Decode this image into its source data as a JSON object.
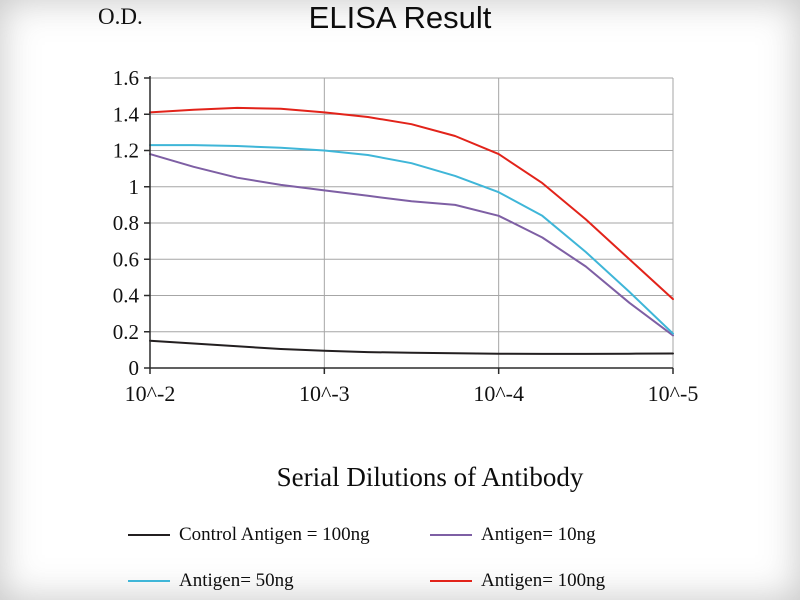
{
  "title": "ELISA Result",
  "y_axis_label": "O.D.",
  "x_axis_label": "Serial Dilutions of Antibody",
  "chart_data": {
    "type": "line",
    "title": "ELISA Result",
    "xlabel": "Serial Dilutions of Antibody",
    "ylabel": "O.D.",
    "x_tick_labels": [
      "10^-2",
      "10^-3",
      "10^-4",
      "10^-5"
    ],
    "y_ticks": [
      0,
      0.2,
      0.4,
      0.6,
      0.8,
      1,
      1.2,
      1.4,
      1.6
    ],
    "y_tick_labels": [
      "0",
      "0.2",
      "0.4",
      "0.6",
      "0.8",
      "1",
      "1.2",
      "1.4",
      "1.6"
    ],
    "ylim": [
      0,
      1.6
    ],
    "xlim": [
      0,
      3
    ],
    "grid": true,
    "legend_position": "bottom",
    "x_sample_positions": [
      0,
      0.25,
      0.5,
      0.75,
      1,
      1.25,
      1.5,
      1.75,
      2,
      2.25,
      2.5,
      2.75,
      3
    ],
    "series": [
      {
        "name": "Control Antigen = 100ng",
        "color": "#231f20",
        "values": [
          0.15,
          0.135,
          0.12,
          0.105,
          0.095,
          0.088,
          0.084,
          0.081,
          0.079,
          0.078,
          0.078,
          0.079,
          0.08
        ]
      },
      {
        "name": "Antigen= 10ng",
        "color": "#7e5fa4",
        "values": [
          1.18,
          1.11,
          1.05,
          1.01,
          0.98,
          0.95,
          0.92,
          0.9,
          0.84,
          0.72,
          0.56,
          0.36,
          0.18
        ]
      },
      {
        "name": "Antigen= 50ng",
        "color": "#3fb6d8",
        "values": [
          1.23,
          1.23,
          1.225,
          1.215,
          1.2,
          1.175,
          1.13,
          1.06,
          0.97,
          0.84,
          0.64,
          0.42,
          0.19
        ]
      },
      {
        "name": "Antigen= 100ng",
        "color": "#e2231a",
        "values": [
          1.41,
          1.425,
          1.435,
          1.43,
          1.41,
          1.385,
          1.345,
          1.28,
          1.18,
          1.02,
          0.82,
          0.6,
          0.38
        ]
      }
    ]
  }
}
